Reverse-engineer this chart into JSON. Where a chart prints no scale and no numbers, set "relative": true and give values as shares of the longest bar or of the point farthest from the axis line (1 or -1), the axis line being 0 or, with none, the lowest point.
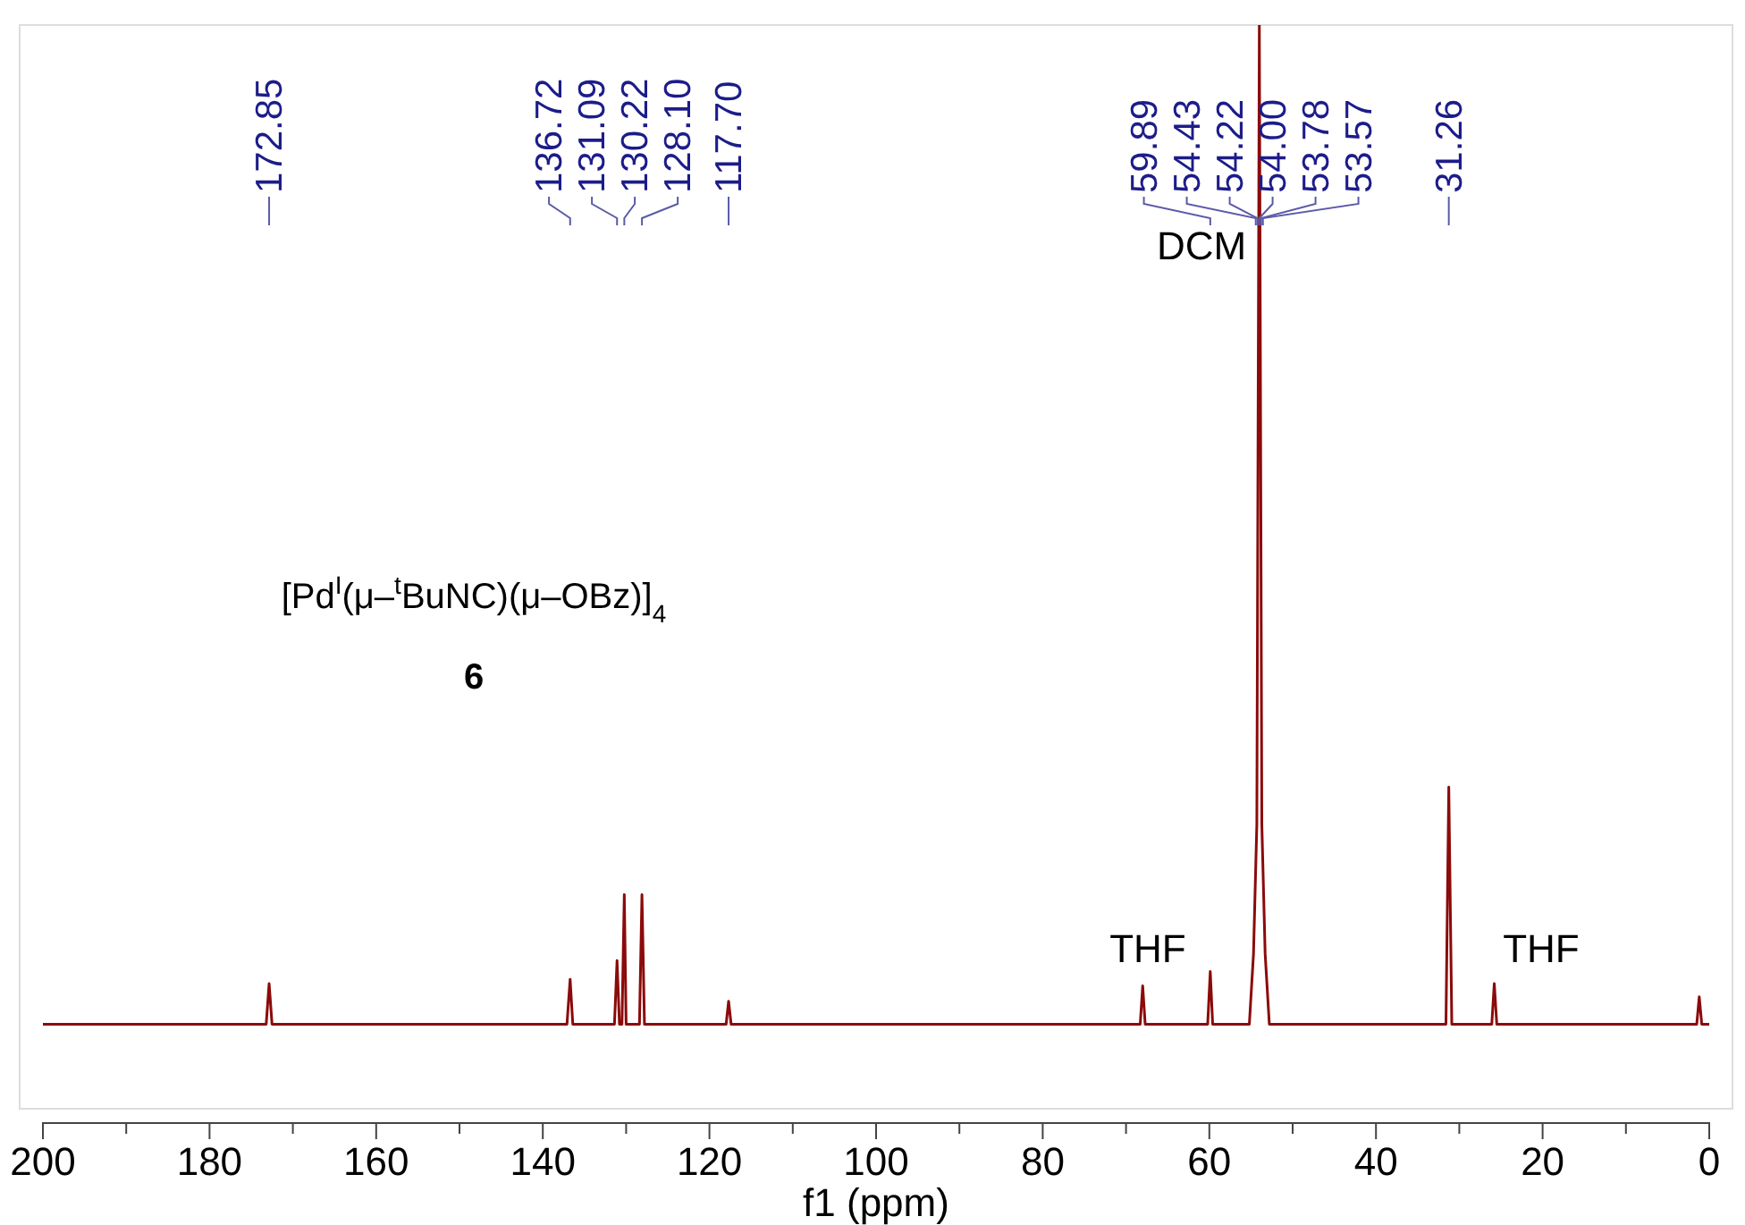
{
  "chart_data": {
    "type": "line",
    "relative": true,
    "xlabel": "f1 (ppm)",
    "xlim": [
      200,
      0
    ],
    "xticks": [
      200,
      {
        "value": 190,
        "label": null
      },
      180,
      {
        "value": 170,
        "label": null
      },
      160,
      {
        "value": 150,
        "label": null
      },
      140,
      {
        "value": 130,
        "label": null
      },
      120,
      {
        "value": 110,
        "label": null
      },
      100,
      {
        "value": 90,
        "label": null
      },
      80,
      {
        "value": 70,
        "label": null
      },
      60,
      {
        "value": 50,
        "label": null
      },
      40,
      {
        "value": 30,
        "label": null
      },
      20,
      {
        "value": 10,
        "label": null
      },
      0
    ],
    "series": [
      {
        "color": "#8b0a0a",
        "x": [
          200,
          173.2,
          172.85,
          172.5,
          137.1,
          136.72,
          136.4,
          131.4,
          131.09,
          130.8,
          130.5,
          130.22,
          130.0,
          128.4,
          128.1,
          127.8,
          118.0,
          117.7,
          117.4,
          68.3,
          68.0,
          67.7,
          60.2,
          59.89,
          59.6,
          55.2,
          54.7,
          54.3,
          54.0,
          53.7,
          53.3,
          52.8,
          31.6,
          31.26,
          30.9,
          26.1,
          25.8,
          25.5,
          1.5,
          1.2,
          0.9,
          0
        ],
        "values": [
          0.09,
          0.09,
          0.127,
          0.09,
          0.09,
          0.131,
          0.09,
          0.09,
          0.148,
          0.09,
          0.09,
          0.208,
          0.09,
          0.09,
          0.208,
          0.09,
          0.09,
          0.111,
          0.09,
          0.09,
          0.125,
          0.09,
          0.09,
          0.138,
          0.09,
          0.09,
          0.154,
          0.272,
          1,
          0.272,
          0.154,
          0.09,
          0.09,
          0.306,
          0.09,
          0.09,
          0.127,
          0.09,
          0.09,
          0.115,
          0.09,
          0.09
        ]
      }
    ],
    "annotations": [
      "[Pd$^{I}$(μ–$^{t}$BuNC)(μ–OBz)]$_{4}$",
      "6",
      "DCM",
      "THF",
      "THF",
      {
        "text": "172.85",
        "x": 172.85
      },
      {
        "text": "136.72",
        "x": 136.72
      },
      {
        "text": "131.09",
        "x": 131.09
      },
      {
        "text": "130.22",
        "x": 130.22
      },
      {
        "text": "128.10",
        "x": 128.1
      },
      {
        "text": "117.70",
        "x": 117.7
      },
      {
        "text": "59.89",
        "x": 59.89
      },
      {
        "text": "54.43",
        "x": 54.43
      },
      {
        "text": "54.22",
        "x": 54.22
      },
      {
        "text": "54.00",
        "x": 54.0
      },
      {
        "text": "53.78",
        "x": 53.78
      },
      {
        "text": "53.57",
        "x": 53.57
      },
      {
        "text": "31.26",
        "x": 31.26
      }
    ]
  }
}
